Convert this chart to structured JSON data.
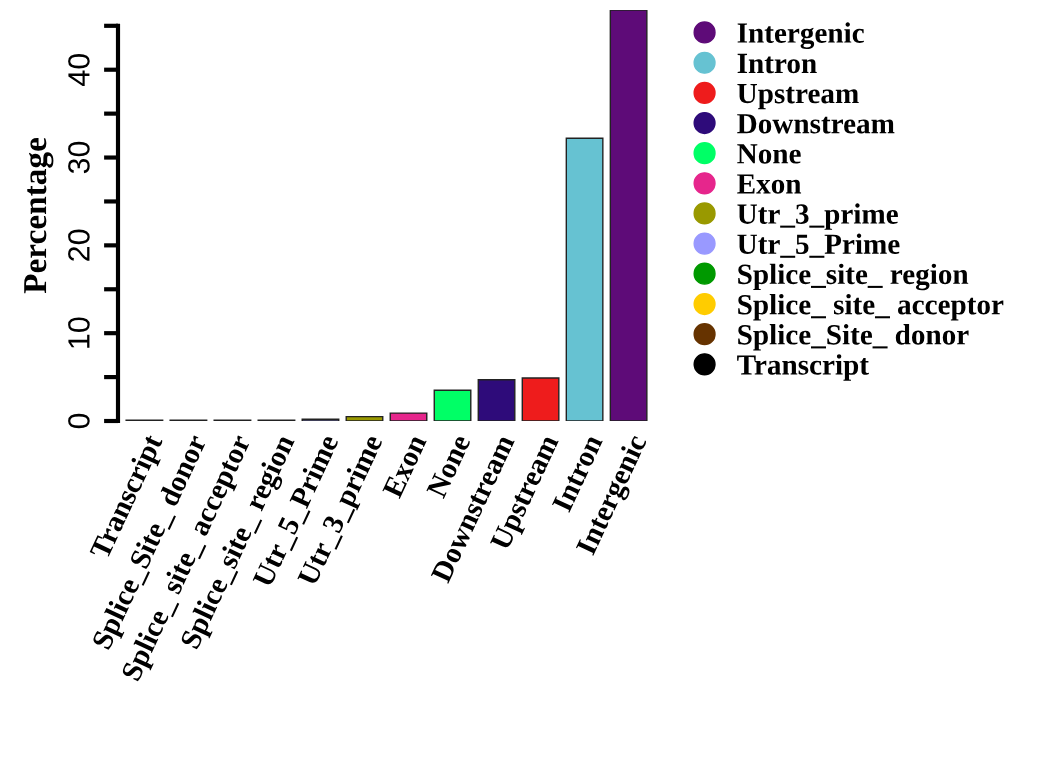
{
  "chart_data": {
    "type": "bar",
    "ylabel": "Percentage",
    "categories": [
      "Transcript",
      "Splice_Site_ donor",
      "Splice_ site_ acceptor",
      "Splice_site_ region",
      "Utr_5_Prime",
      "Utr_3_prime",
      "Exon",
      "None",
      "Downstream",
      "Upstream",
      "Intron",
      "Intergenic"
    ],
    "series": [
      {
        "name": "Transcript",
        "color": "#000000",
        "values": [
          0.1,
          null,
          null,
          null,
          null,
          null,
          null,
          null,
          null,
          null,
          null,
          null
        ]
      },
      {
        "name": "Splice_Site_ donor",
        "color": "#663300",
        "values": [
          null,
          0.1,
          null,
          null,
          null,
          null,
          null,
          null,
          null,
          null,
          null,
          null
        ]
      },
      {
        "name": "Splice_ site_ acceptor",
        "color": "#ffcc00",
        "values": [
          null,
          null,
          0.1,
          null,
          null,
          null,
          null,
          null,
          null,
          null,
          null,
          null
        ]
      },
      {
        "name": "Splice_site_ region",
        "color": "#009900",
        "values": [
          null,
          null,
          null,
          0.1,
          null,
          null,
          null,
          null,
          null,
          null,
          null,
          null
        ]
      },
      {
        "name": "Utr_5_Prime",
        "color": "#9999ff",
        "values": [
          null,
          null,
          null,
          null,
          0.2,
          null,
          null,
          null,
          null,
          null,
          null,
          null
        ]
      },
      {
        "name": "Utr_3_prime",
        "color": "#999900",
        "values": [
          null,
          null,
          null,
          null,
          null,
          0.5,
          null,
          null,
          null,
          null,
          null,
          null
        ]
      },
      {
        "name": "Exon",
        "color": "#e6268c",
        "values": [
          null,
          null,
          null,
          null,
          null,
          null,
          0.9,
          null,
          null,
          null,
          null,
          null
        ]
      },
      {
        "name": "None",
        "color": "#00ff66",
        "values": [
          null,
          null,
          null,
          null,
          null,
          null,
          null,
          3.5,
          null,
          null,
          null,
          null
        ]
      },
      {
        "name": "Downstream",
        "color": "#2e0b7a",
        "values": [
          null,
          null,
          null,
          null,
          null,
          null,
          null,
          null,
          4.7,
          null,
          null,
          null
        ]
      },
      {
        "name": "Upstream",
        "color": "#ee1c1c",
        "values": [
          null,
          null,
          null,
          null,
          null,
          null,
          null,
          null,
          null,
          4.9,
          null,
          null
        ]
      },
      {
        "name": "Intron",
        "color": "#66c2d2",
        "values": [
          null,
          null,
          null,
          null,
          null,
          null,
          null,
          null,
          null,
          null,
          32.2,
          null
        ]
      },
      {
        "name": "Intergenic",
        "color": "#5e0b78",
        "values": [
          null,
          null,
          null,
          null,
          null,
          null,
          null,
          null,
          null,
          null,
          null,
          46.8
        ]
      }
    ],
    "ylim": [
      0,
      46.8
    ],
    "yticks": [
      0,
      {
        "value": 5,
        "label": null
      },
      10,
      {
        "value": 15,
        "label": null
      },
      20,
      {
        "value": 25,
        "label": null
      },
      30,
      {
        "value": 35,
        "label": null
      },
      40,
      {
        "value": 45,
        "label": null
      }
    ],
    "legend": "right",
    "grid": false
  }
}
